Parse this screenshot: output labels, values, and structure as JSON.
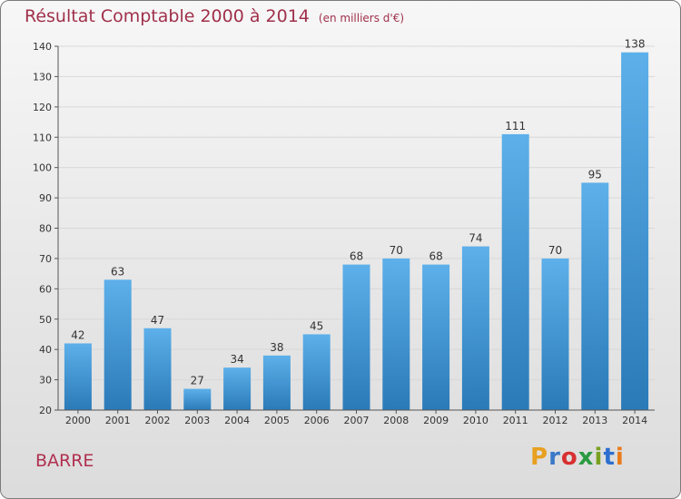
{
  "header": {
    "title": "Résultat Comptable 2000 à 2014",
    "subtitle": "(en milliers d'€)"
  },
  "footer": {
    "commune": "BARRE",
    "logo_text": "Proxiti",
    "logo_colors": [
      "#e8a020",
      "#3a78c8",
      "#d83030",
      "#2a9a40",
      "#7aa020",
      "#2c6fd0",
      "#ea7c1c"
    ]
  },
  "colors": {
    "title": "#a0304a",
    "bar_top": "#5db0ea",
    "bar_bottom": "#2a7ab8",
    "grid": "#d8d8d8",
    "axis": "#555555",
    "text": "#333333"
  },
  "chart_data": {
    "type": "bar",
    "title": "Résultat Comptable 2000 à 2014",
    "xlabel": "",
    "ylabel": "(en milliers d'€)",
    "categories": [
      "2000",
      "2001",
      "2002",
      "2003",
      "2004",
      "2005",
      "2006",
      "2007",
      "2008",
      "2009",
      "2010",
      "2011",
      "2012",
      "2013",
      "2014"
    ],
    "values": [
      42,
      63,
      47,
      27,
      34,
      38,
      45,
      68,
      70,
      68,
      74,
      111,
      70,
      95,
      138
    ],
    "ylim": [
      20,
      140
    ],
    "yticks": [
      20,
      30,
      40,
      50,
      60,
      70,
      80,
      90,
      100,
      110,
      120,
      130,
      140
    ],
    "grid": true
  }
}
